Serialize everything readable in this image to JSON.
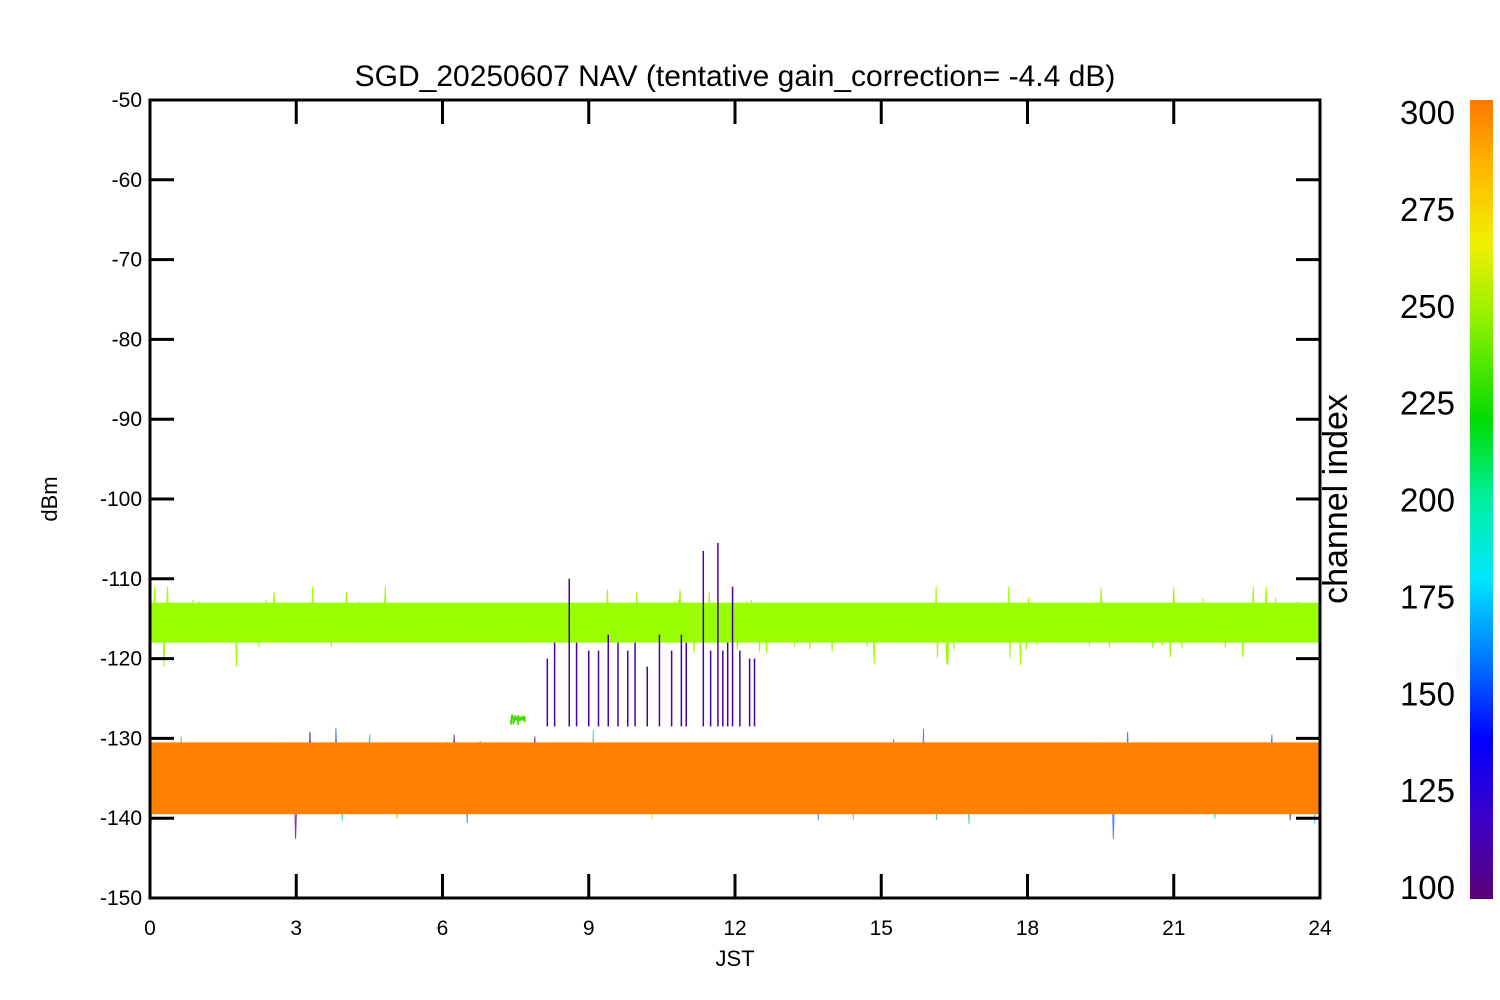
{
  "chart_data": {
    "type": "line",
    "title": "SGD_20250607 NAV (tentative gain_correction= -4.4 dB)",
    "xlabel": "JST",
    "ylabel": "dBm",
    "xlim": [
      0,
      24
    ],
    "ylim": [
      -150,
      -50
    ],
    "x_ticks": [
      "0",
      "3",
      "6",
      "9",
      "12",
      "15",
      "18",
      "21",
      "24"
    ],
    "y_ticks": [
      "-50",
      "-60",
      "-70",
      "-80",
      "-90",
      "-100",
      "-110",
      "-120",
      "-130",
      "-140",
      "-150"
    ],
    "grid": false,
    "colorbar": {
      "label": "channel index",
      "range": [
        100,
        300
      ],
      "ticks": [
        "300",
        "275",
        "250",
        "225",
        "200",
        "175",
        "150",
        "125",
        "100"
      ],
      "colormap": [
        "#5a0078",
        "#3c00c8",
        "#0000ff",
        "#0078ff",
        "#00e6ff",
        "#00f0a0",
        "#00dc00",
        "#8cf000",
        "#f0f000",
        "#ffb400",
        "#ff7800"
      ]
    },
    "series": [
      {
        "channel_range": [
          280,
          300
        ],
        "color": "#ff8000",
        "x_range": [
          0,
          24
        ],
        "y_center": -135,
        "y_range": [
          -143,
          -128
        ]
      },
      {
        "channel_range": [
          255,
          262
        ],
        "color": "#99ff00",
        "x_range": [
          0,
          24
        ],
        "y_center": -115.5,
        "y_range": [
          -121,
          -111
        ]
      },
      {
        "channel_range": [
          100,
          250
        ],
        "color": "#1ec8c8",
        "x_range": [
          0,
          24
        ],
        "y_center": -135,
        "y_range": [
          -147,
          -127
        ]
      },
      {
        "channel_range": [
          235,
          240
        ],
        "color": "#44dd00",
        "x_range": [
          7.4,
          7.7
        ],
        "y_center": -127.5,
        "y_range": [
          -129,
          -125
        ]
      },
      {
        "channel_range": [
          110,
          115
        ],
        "color": "#4a00a8",
        "x_range": [
          8.1,
          12.5
        ],
        "y_center": -125,
        "y_range": [
          -129,
          -106
        ]
      }
    ]
  }
}
